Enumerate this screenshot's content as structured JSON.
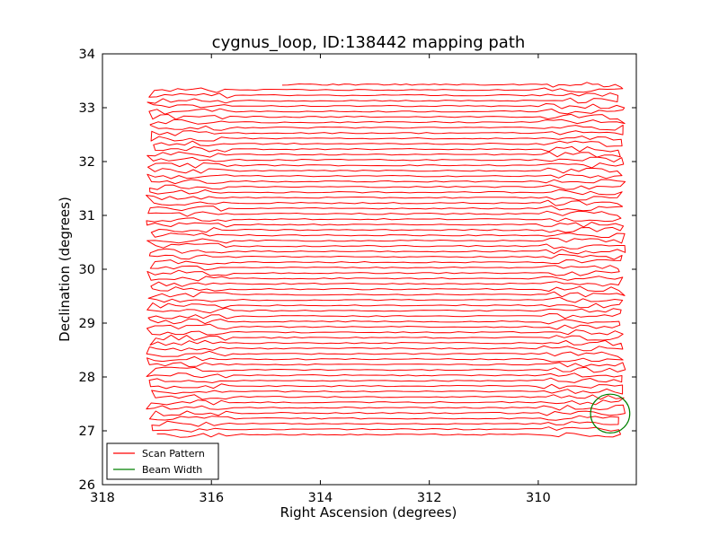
{
  "chart_data": {
    "type": "line",
    "title": "cygnus_loop, ID:138442 mapping path",
    "xlabel": "Right Ascension (degrees)",
    "ylabel": "Declination (degrees)",
    "xlim": [
      318,
      308.2
    ],
    "ylim": [
      26,
      34
    ],
    "x_inverted": true,
    "xticks": [
      318,
      316,
      314,
      312,
      310
    ],
    "yticks": [
      26,
      27,
      28,
      29,
      30,
      31,
      32,
      33,
      34
    ],
    "grid": false,
    "legend_position": "lower-left",
    "series": [
      {
        "name": "Scan Pattern",
        "color": "#ff0000",
        "kind": "raster-scan",
        "ra_east_edge": 317.2,
        "ra_west_edge": 308.4,
        "dec_start": 26.93,
        "dec_end": 33.52,
        "row_spacing": 0.1,
        "first_row_ra_end": 310.5,
        "last_row_ra_start": 314.7
      },
      {
        "name": "Beam Width",
        "color": "#008000",
        "kind": "circle",
        "center_ra": 308.68,
        "center_dec": 27.32,
        "radius_deg": 0.36
      }
    ]
  }
}
